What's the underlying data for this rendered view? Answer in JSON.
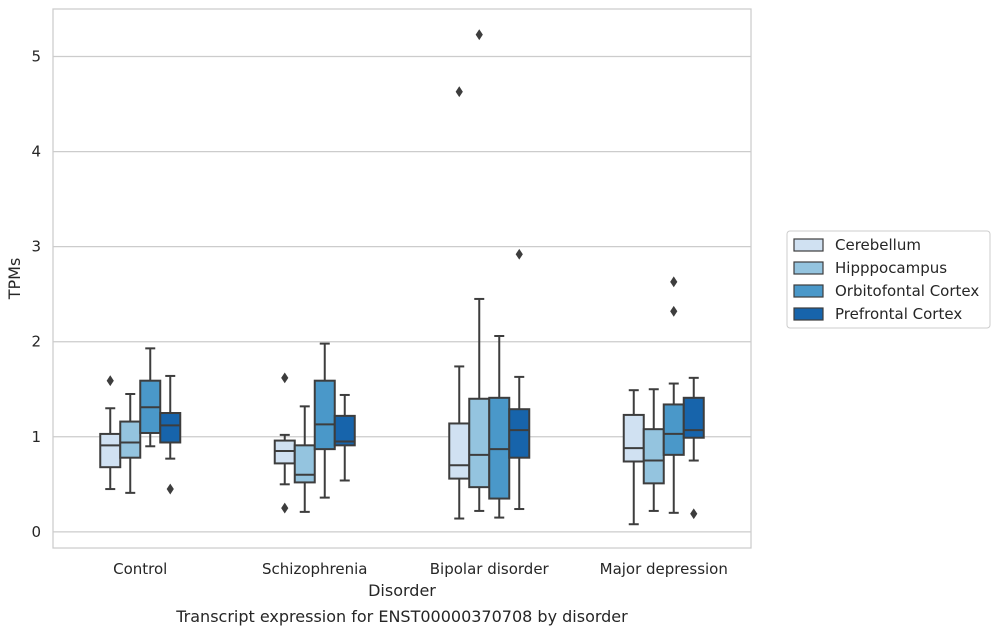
{
  "chart_data": {
    "type": "box",
    "caption": "Transcript expression for ENST00000370708 by disorder",
    "xlabel": "Disorder",
    "ylabel": "TPMs",
    "ylim": [
      -0.17,
      5.5
    ],
    "yticks": [
      "0",
      "1",
      "2",
      "3",
      "4",
      "5"
    ],
    "grid": true,
    "legend_position": "right",
    "categories": [
      "Control",
      "Schizophrenia",
      "Bipolar disorder",
      "Major depression"
    ],
    "series": [
      {
        "name": "Cerebellum",
        "color": "#d0e1f2",
        "boxes": [
          {
            "whislo": 0.45,
            "q1": 0.68,
            "med": 0.91,
            "q3": 1.03,
            "whishi": 1.3,
            "fliers": [
              1.59
            ]
          },
          {
            "whislo": 0.5,
            "q1": 0.72,
            "med": 0.85,
            "q3": 0.96,
            "whishi": 1.02,
            "fliers": [
              1.62,
              0.25
            ]
          },
          {
            "whislo": 0.14,
            "q1": 0.56,
            "med": 0.7,
            "q3": 1.14,
            "whishi": 1.74,
            "fliers": [
              4.63
            ]
          },
          {
            "whislo": 0.08,
            "q1": 0.74,
            "med": 0.88,
            "q3": 1.23,
            "whishi": 1.49,
            "fliers": []
          }
        ]
      },
      {
        "name": "Hipppocampus",
        "color": "#94c4df",
        "boxes": [
          {
            "whislo": 0.41,
            "q1": 0.78,
            "med": 0.94,
            "q3": 1.16,
            "whishi": 1.45,
            "fliers": []
          },
          {
            "whislo": 0.21,
            "q1": 0.52,
            "med": 0.6,
            "q3": 0.91,
            "whishi": 1.32,
            "fliers": []
          },
          {
            "whislo": 0.22,
            "q1": 0.47,
            "med": 0.81,
            "q3": 1.4,
            "whishi": 2.45,
            "fliers": [
              5.23
            ]
          },
          {
            "whislo": 0.22,
            "q1": 0.51,
            "med": 0.75,
            "q3": 1.08,
            "whishi": 1.5,
            "fliers": []
          }
        ]
      },
      {
        "name": "Orbitofontal Cortex",
        "color": "#4a98c9",
        "boxes": [
          {
            "whislo": 0.9,
            "q1": 1.04,
            "med": 1.31,
            "q3": 1.59,
            "whishi": 1.93,
            "fliers": []
          },
          {
            "whislo": 0.36,
            "q1": 0.87,
            "med": 1.13,
            "q3": 1.59,
            "whishi": 1.98,
            "fliers": []
          },
          {
            "whislo": 0.15,
            "q1": 0.35,
            "med": 0.87,
            "q3": 1.41,
            "whishi": 2.06,
            "fliers": []
          },
          {
            "whislo": 0.2,
            "q1": 0.81,
            "med": 1.03,
            "q3": 1.34,
            "whishi": 1.56,
            "fliers": [
              2.63,
              2.32
            ]
          }
        ]
      },
      {
        "name": "Prefrontal Cortex",
        "color": "#1764ab",
        "boxes": [
          {
            "whislo": 0.77,
            "q1": 0.94,
            "med": 1.12,
            "q3": 1.25,
            "whishi": 1.64,
            "fliers": [
              0.45
            ]
          },
          {
            "whislo": 0.54,
            "q1": 0.91,
            "med": 0.95,
            "q3": 1.22,
            "whishi": 1.44,
            "fliers": []
          },
          {
            "whislo": 0.24,
            "q1": 0.78,
            "med": 1.07,
            "q3": 1.29,
            "whishi": 1.63,
            "fliers": [
              2.92
            ]
          },
          {
            "whislo": 0.75,
            "q1": 0.99,
            "med": 1.07,
            "q3": 1.41,
            "whishi": 1.62,
            "fliers": [
              0.19
            ]
          }
        ]
      }
    ]
  }
}
